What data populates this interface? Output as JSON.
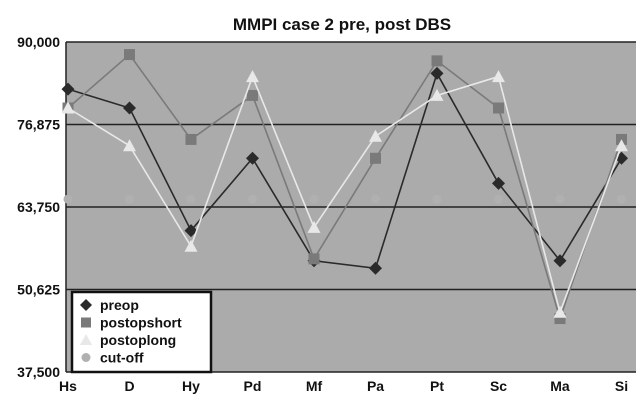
{
  "chart_data": {
    "type": "line",
    "title": "MMPI case 2 pre, post DBS",
    "xlabel": "",
    "ylabel": "",
    "categories": [
      "Hs",
      "D",
      "Hy",
      "Pd",
      "Mf",
      "Pa",
      "Pt",
      "Sc",
      "Ma",
      "Si"
    ],
    "y_tick_labels": [
      "37,500",
      "50,625",
      "63,750",
      "76,875",
      "90,000"
    ],
    "ylim": [
      37500,
      90000
    ],
    "grid": true,
    "legend_position": "bottom-left",
    "series": [
      {
        "name": "preop",
        "marker": "diamond",
        "color": "#2a2a2a",
        "values": [
          82500,
          79500,
          60000,
          71500,
          55200,
          54000,
          85000,
          67500,
          55200,
          71500
        ]
      },
      {
        "name": "postopshort",
        "marker": "square",
        "color": "#7a7a7a",
        "values": [
          79500,
          88000,
          74500,
          81500,
          55500,
          71500,
          87000,
          79500,
          46000,
          74500
        ]
      },
      {
        "name": "postoplong",
        "marker": "triangle",
        "color": "#e8e8e8",
        "values": [
          79500,
          73500,
          57500,
          84500,
          60500,
          75000,
          81500,
          84500,
          47000,
          73500
        ]
      },
      {
        "name": "cut-off",
        "marker": "circle",
        "color": "#b0b0b0",
        "values": [
          65000,
          65000,
          65000,
          65000,
          65000,
          65000,
          65000,
          65000,
          65000,
          65000
        ]
      }
    ]
  }
}
